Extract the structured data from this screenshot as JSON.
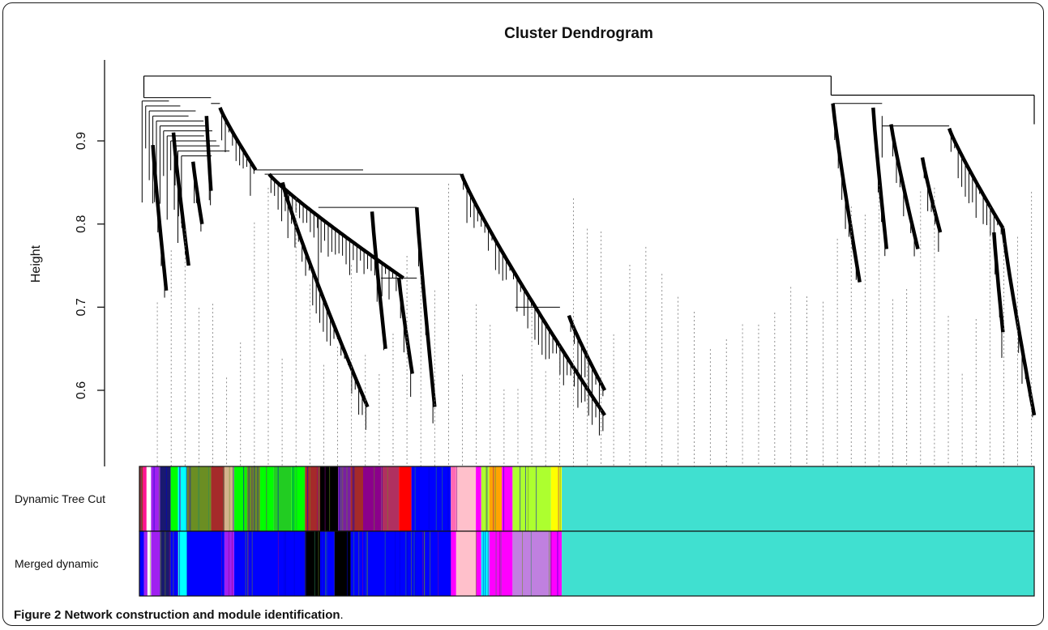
{
  "chart_data": {
    "type": "dendrogram",
    "title": "Cluster Dendrogram",
    "ylabel": "Height",
    "ylim": [
      0.54,
      0.99
    ],
    "yticks": [
      0.6,
      0.7,
      0.8,
      0.9
    ],
    "ytick_labels": [
      "0.6",
      "0.7",
      "0.8",
      "0.9"
    ],
    "grid": false,
    "root_merge_height": 0.978,
    "branches": [
      {
        "name": "left",
        "merge_height": 0.952
      },
      {
        "name": "right",
        "merge_height": 0.955
      }
    ],
    "color_rows": [
      {
        "label": "Dynamic Tree Cut",
        "segments": [
          {
            "end": 0.004,
            "color": "#a52a2a"
          },
          {
            "end": 0.008,
            "color": "#ff1493"
          },
          {
            "end": 0.013,
            "color": "#ffffff"
          },
          {
            "end": 0.023,
            "color": "#a020f0"
          },
          {
            "end": 0.035,
            "color": "#191970"
          },
          {
            "end": 0.043,
            "color": "#00ff00"
          },
          {
            "end": 0.053,
            "color": "#00ffff"
          },
          {
            "end": 0.08,
            "color": "#6b8e23"
          },
          {
            "end": 0.095,
            "color": "#a52a2a"
          },
          {
            "end": 0.106,
            "color": "#d2b48c"
          },
          {
            "end": 0.12,
            "color": "#00ff00"
          },
          {
            "end": 0.135,
            "color": "#6b8e23"
          },
          {
            "end": 0.15,
            "color": "#00ff00"
          },
          {
            "end": 0.17,
            "color": "#22cc22"
          },
          {
            "end": 0.185,
            "color": "#00ff00"
          },
          {
            "end": 0.202,
            "color": "#a52a2a"
          },
          {
            "end": 0.222,
            "color": "#000000"
          },
          {
            "end": 0.236,
            "color": "#7a1fa2"
          },
          {
            "end": 0.25,
            "color": "#a52a2a"
          },
          {
            "end": 0.27,
            "color": "#8b008b"
          },
          {
            "end": 0.29,
            "color": "#b03060"
          },
          {
            "end": 0.304,
            "color": "#ff0000"
          },
          {
            "end": 0.348,
            "color": "#0000ff"
          },
          {
            "end": 0.354,
            "color": "#ff69b4"
          },
          {
            "end": 0.376,
            "color": "#ffc0cb"
          },
          {
            "end": 0.382,
            "color": "#ff00ff"
          },
          {
            "end": 0.391,
            "color": "#adff2f"
          },
          {
            "end": 0.405,
            "color": "#ffa500"
          },
          {
            "end": 0.417,
            "color": "#ff00ff"
          },
          {
            "end": 0.46,
            "color": "#adff2f"
          },
          {
            "end": 0.472,
            "color": "#ffff00"
          },
          {
            "end": 1.0,
            "color": "#40e0d0"
          }
        ]
      },
      {
        "label": "Merged dynamic",
        "segments": [
          {
            "end": 0.005,
            "color": "#0000ff"
          },
          {
            "end": 0.009,
            "color": "#a020f0"
          },
          {
            "end": 0.013,
            "color": "#ffffff"
          },
          {
            "end": 0.023,
            "color": "#a020f0"
          },
          {
            "end": 0.035,
            "color": "#191970"
          },
          {
            "end": 0.043,
            "color": "#0000ff"
          },
          {
            "end": 0.053,
            "color": "#00ffff"
          },
          {
            "end": 0.095,
            "color": "#0000ff"
          },
          {
            "end": 0.106,
            "color": "#a020f0"
          },
          {
            "end": 0.185,
            "color": "#0000ff"
          },
          {
            "end": 0.202,
            "color": "#000000"
          },
          {
            "end": 0.218,
            "color": "#0000ff"
          },
          {
            "end": 0.236,
            "color": "#000000"
          },
          {
            "end": 0.348,
            "color": "#0000ff"
          },
          {
            "end": 0.354,
            "color": "#ff00ff"
          },
          {
            "end": 0.376,
            "color": "#ffc0cb"
          },
          {
            "end": 0.382,
            "color": "#ff00ff"
          },
          {
            "end": 0.391,
            "color": "#00ffff"
          },
          {
            "end": 0.417,
            "color": "#ff00ff"
          },
          {
            "end": 0.46,
            "color": "#c080e0"
          },
          {
            "end": 0.472,
            "color": "#ff00ff"
          },
          {
            "end": 1.0,
            "color": "#40e0d0"
          }
        ]
      }
    ]
  },
  "caption": {
    "bold": "Figure 2 Network construction and module identification",
    "rest": "."
  }
}
